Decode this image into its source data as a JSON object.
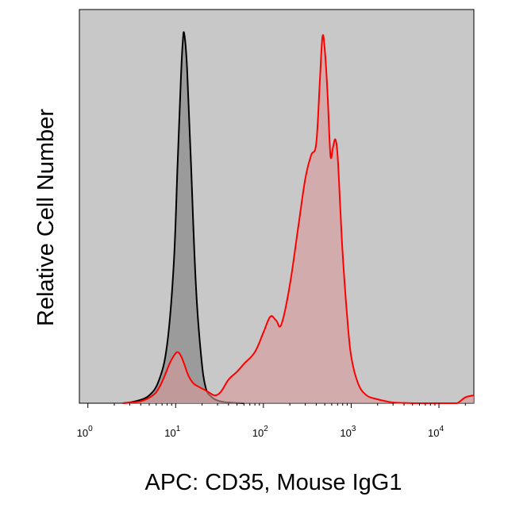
{
  "chart_data": {
    "type": "area",
    "xlabel": "APC: CD35, Mouse IgG1",
    "ylabel": "Relative Cell Number",
    "x_scale": "log",
    "xlim": [
      0.8,
      25000
    ],
    "ylim": [
      0,
      100
    ],
    "grid": false,
    "legend": "none",
    "x_ticks": [
      {
        "base": "10",
        "exp": "0",
        "value": 1
      },
      {
        "base": "10",
        "exp": "1",
        "value": 10
      },
      {
        "base": "10",
        "exp": "2",
        "value": 100
      },
      {
        "base": "10",
        "exp": "3",
        "value": 1000
      },
      {
        "base": "10",
        "exp": "4",
        "value": 10000
      }
    ],
    "colors": {
      "plot_background": "#c8c8c8",
      "isotype_fill": "#8c8c8c",
      "isotype_line": "#000000",
      "stained_fill": "#d89a9a",
      "stained_line": "#ff0000"
    },
    "series": [
      {
        "x": [
          2.5,
          3.5,
          5,
          6.5,
          8,
          9.5,
          10.5,
          11.5,
          12,
          12.5,
          13.5,
          15,
          17,
          19.5,
          22,
          26,
          32,
          40,
          60
        ],
        "y": [
          0,
          0.5,
          2,
          6,
          15,
          35,
          60,
          83,
          91,
          94,
          85,
          60,
          30,
          12,
          4,
          1.5,
          0.5,
          0.2,
          0
        ]
      },
      {
        "x": [
          2.5,
          4,
          5.5,
          6.5,
          7.5,
          8.5,
          9.5,
          10.5,
          11.5,
          12.5,
          14,
          16,
          19,
          23,
          28,
          33,
          40,
          50,
          60,
          80,
          100,
          120,
          140,
          160,
          200,
          250,
          300,
          350,
          400,
          440,
          470,
          500,
          540,
          580,
          620,
          660,
          700,
          750,
          800,
          900,
          1000,
          1200,
          1500,
          2000,
          2500,
          3000,
          5000,
          8000,
          12000,
          16000,
          20000,
          25000
        ],
        "y": [
          0,
          0.5,
          2,
          4,
          7,
          10,
          12,
          13,
          12,
          10,
          7,
          5,
          4,
          3,
          2,
          3,
          6,
          8,
          10,
          13,
          18,
          22,
          21,
          20,
          30,
          45,
          57,
          63,
          66,
          82,
          93,
          90,
          78,
          63,
          65,
          67,
          63,
          50,
          38,
          22,
          12,
          5,
          2,
          1,
          0.5,
          0.2,
          0,
          0,
          0,
          0,
          1.5,
          2
        ]
      }
    ]
  }
}
